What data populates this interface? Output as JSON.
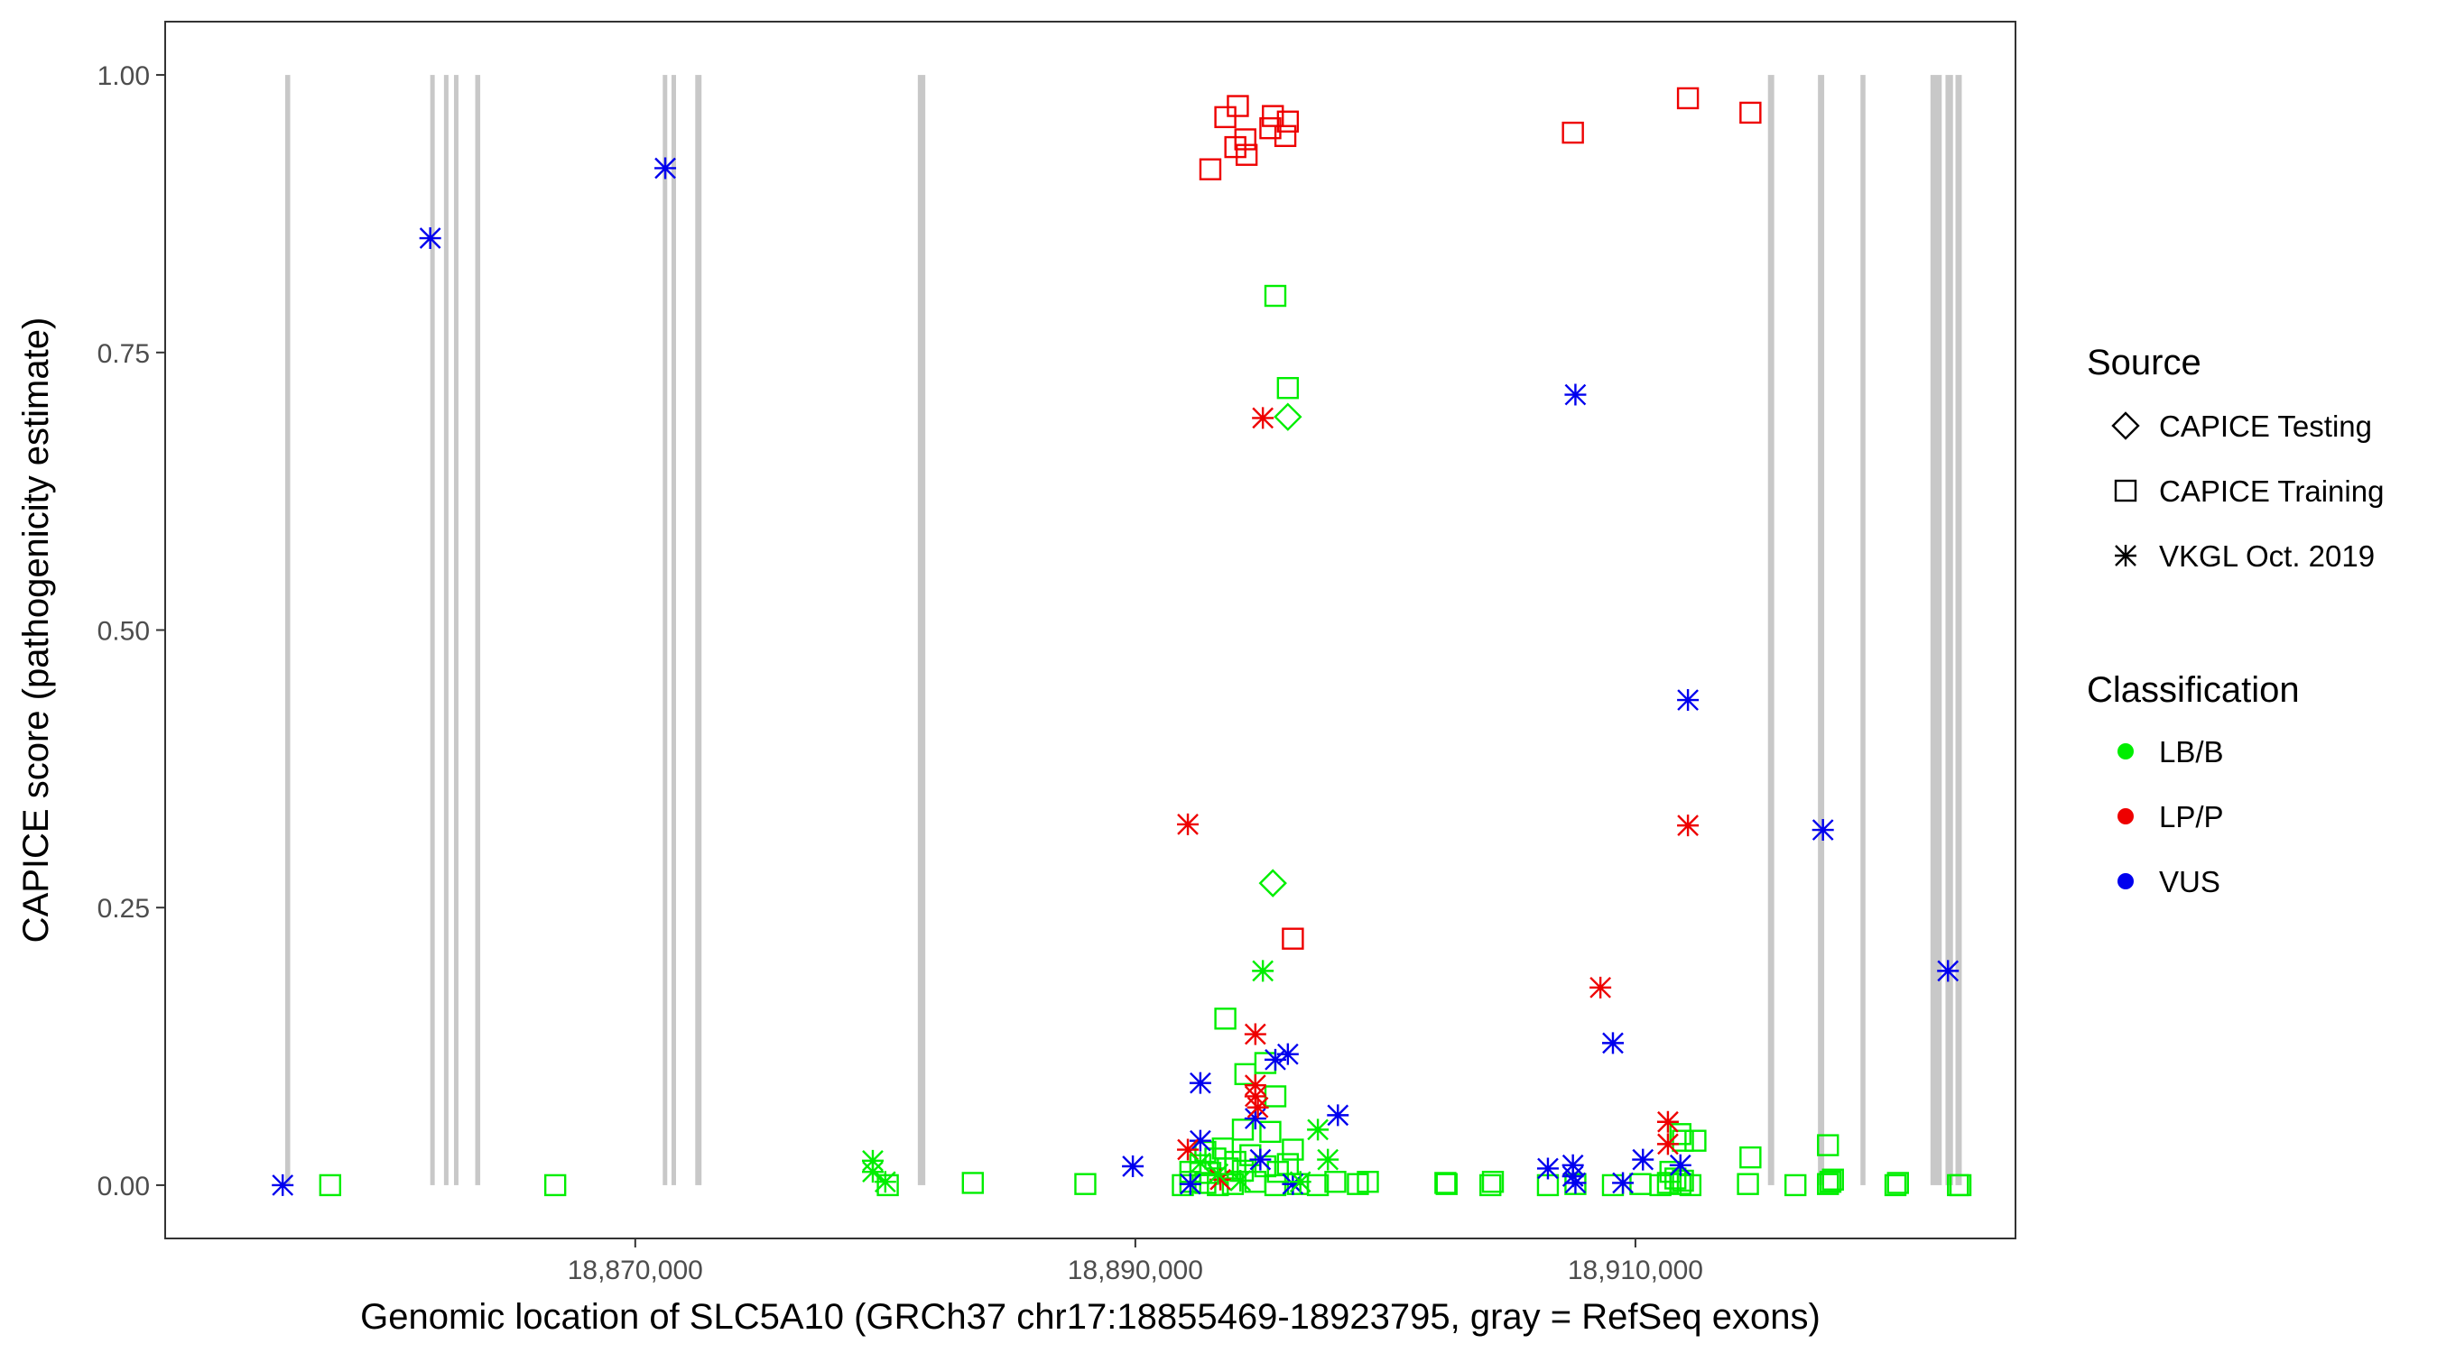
{
  "chart_data": {
    "type": "scatter",
    "xlabel": "Genomic location of SLC5A10 (GRCh37 chr17:18855469-18923795, gray = RefSeq exons)",
    "ylabel": "CAPICE score (pathogenicity estimate)",
    "xlim": [
      18851200,
      18925200
    ],
    "ylim": [
      -0.048,
      1.048
    ],
    "x_ticks": [
      18870000,
      18890000,
      18910000
    ],
    "x_tick_labels": [
      "18,870,000",
      "18,890,000",
      "18,910,000"
    ],
    "y_ticks": [
      0,
      0.25,
      0.5,
      0.75,
      1
    ],
    "y_tick_labels": [
      "0.00",
      "0.25",
      "0.50",
      "0.75",
      "1.00"
    ],
    "grid": false,
    "exon_color": "#c8c8c8",
    "exons": [
      [
        18856000,
        18856200
      ],
      [
        18861800,
        18861950
      ],
      [
        18862350,
        18862500
      ],
      [
        18862750,
        18862900
      ],
      [
        18863600,
        18863800
      ],
      [
        18871100,
        18871250
      ],
      [
        18871450,
        18871600
      ],
      [
        18872400,
        18872650
      ],
      [
        18881300,
        18881600
      ],
      [
        18915300,
        18915550
      ],
      [
        18917300,
        18917550
      ],
      [
        18919000,
        18919200
      ],
      [
        18921800,
        18922250
      ],
      [
        18922400,
        18922700
      ],
      [
        18922800,
        18923050
      ]
    ],
    "legend": {
      "position": "right",
      "source_title": "Source",
      "source_entries": [
        {
          "label": "CAPICE Testing",
          "shape": "diamond"
        },
        {
          "label": "CAPICE Training",
          "shape": "square"
        },
        {
          "label": "VKGL Oct. 2019",
          "shape": "asterisk"
        }
      ],
      "class_title": "Classification",
      "class_entries": [
        {
          "label": "LB/B",
          "color": "#00ee00"
        },
        {
          "label": "LP/P",
          "color": "#ee0000"
        },
        {
          "label": "VUS",
          "color": "#0000ee"
        }
      ]
    },
    "series": [
      {
        "source": "CAPICE Training",
        "classification": "LP/P",
        "shape": "square",
        "color": "#ee0000",
        "points": [
          [
            18893000,
            0.915
          ],
          [
            18893600,
            0.962
          ],
          [
            18894000,
            0.935
          ],
          [
            18894100,
            0.972
          ],
          [
            18894400,
            0.942
          ],
          [
            18894450,
            0.928
          ],
          [
            18895400,
            0.952
          ],
          [
            18895500,
            0.963
          ],
          [
            18896000,
            0.945
          ],
          [
            18896100,
            0.958
          ],
          [
            18907500,
            0.948
          ],
          [
            18912100,
            0.979
          ],
          [
            18914600,
            0.966
          ],
          [
            18896300,
            0.222
          ]
        ]
      },
      {
        "source": "CAPICE Training",
        "classification": "LB/B",
        "shape": "square",
        "color": "#00ee00",
        "points": [
          [
            18857800,
            0.0
          ],
          [
            18866800,
            0.0
          ],
          [
            18880100,
            0.0
          ],
          [
            18883500,
            0.002
          ],
          [
            18888000,
            0.001
          ],
          [
            18891900,
            0.0
          ],
          [
            18892200,
            0.003
          ],
          [
            18892800,
            0.002
          ],
          [
            18893300,
            0.0
          ],
          [
            18893900,
            0.001
          ],
          [
            18894800,
            0.003
          ],
          [
            18895600,
            0.0
          ],
          [
            18896500,
            0.001
          ],
          [
            18897300,
            0.0
          ],
          [
            18898000,
            0.003
          ],
          [
            18898900,
            0.001
          ],
          [
            18899300,
            0.003
          ],
          [
            18902400,
            0.002
          ],
          [
            18902450,
            0.001
          ],
          [
            18904200,
            0.0
          ],
          [
            18904300,
            0.003
          ],
          [
            18906500,
            0.0
          ],
          [
            18907600,
            0.001
          ],
          [
            18909100,
            0.0
          ],
          [
            18910200,
            0.001
          ],
          [
            18911000,
            0.0
          ],
          [
            18911300,
            0.002
          ],
          [
            18911800,
            0.001
          ],
          [
            18912200,
            0.0
          ],
          [
            18914500,
            0.001
          ],
          [
            18916400,
            0.0
          ],
          [
            18917700,
            0.001
          ],
          [
            18917800,
            0.003
          ],
          [
            18920400,
            0.0
          ],
          [
            18920500,
            0.002
          ],
          [
            18922900,
            0.0
          ],
          [
            18923000,
            0.0
          ],
          [
            18892200,
            0.012
          ],
          [
            18892600,
            0.018
          ],
          [
            18893000,
            0.011
          ],
          [
            18893200,
            0.024
          ],
          [
            18893700,
            0.015
          ],
          [
            18894000,
            0.021
          ],
          [
            18894300,
            0.013
          ],
          [
            18894600,
            0.027
          ],
          [
            18895200,
            0.017
          ],
          [
            18895700,
            0.012
          ],
          [
            18896100,
            0.019
          ],
          [
            18896300,
            0.032
          ],
          [
            18893500,
            0.033
          ],
          [
            18894300,
            0.05
          ],
          [
            18895400,
            0.048
          ],
          [
            18893600,
            0.15
          ],
          [
            18894400,
            0.1
          ],
          [
            18895600,
            0.08
          ],
          [
            18895200,
            0.11
          ],
          [
            18895600,
            0.801
          ],
          [
            18896100,
            0.718
          ],
          [
            18914600,
            0.025
          ],
          [
            18912400,
            0.04
          ],
          [
            18911800,
            0.046
          ],
          [
            18911900,
            0.04
          ],
          [
            18911400,
            0.012
          ],
          [
            18911600,
            0.006
          ],
          [
            18911900,
            0.004
          ],
          [
            18917700,
            0.036
          ],
          [
            18917900,
            0.005
          ],
          [
            18892800,
            0.03
          ]
        ]
      },
      {
        "source": "CAPICE Testing",
        "classification": "LB/B",
        "shape": "diamond",
        "color": "#00ee00",
        "points": [
          [
            18896100,
            0.692
          ],
          [
            18895500,
            0.272
          ]
        ]
      },
      {
        "source": "VKGL Oct. 2019",
        "classification": "VUS",
        "shape": "asterisk",
        "color": "#0000ee",
        "points": [
          [
            18855900,
            0.0
          ],
          [
            18861800,
            0.853
          ],
          [
            18871200,
            0.916
          ],
          [
            18889900,
            0.017
          ],
          [
            18892600,
            0.092
          ],
          [
            18892600,
            0.04
          ],
          [
            18892200,
            0.001
          ],
          [
            18894800,
            0.06
          ],
          [
            18895600,
            0.113
          ],
          [
            18896100,
            0.118
          ],
          [
            18895000,
            0.023
          ],
          [
            18898100,
            0.063
          ],
          [
            18896300,
            0.001
          ],
          [
            18907600,
            0.712
          ],
          [
            18909100,
            0.128
          ],
          [
            18906500,
            0.015
          ],
          [
            18907500,
            0.018
          ],
          [
            18907500,
            0.008
          ],
          [
            18907600,
            0.002
          ],
          [
            18909500,
            0.002
          ],
          [
            18910300,
            0.023
          ],
          [
            18912100,
            0.437
          ],
          [
            18911800,
            0.018
          ],
          [
            18917500,
            0.32
          ],
          [
            18922500,
            0.193
          ]
        ]
      },
      {
        "source": "VKGL Oct. 2019",
        "classification": "LP/P",
        "shape": "asterisk",
        "color": "#ee0000",
        "points": [
          [
            18892100,
            0.325
          ],
          [
            18895100,
            0.691
          ],
          [
            18894800,
            0.136
          ],
          [
            18894800,
            0.09
          ],
          [
            18894800,
            0.08
          ],
          [
            18894900,
            0.07
          ],
          [
            18892100,
            0.032
          ],
          [
            18893400,
            0.005
          ],
          [
            18908600,
            0.178
          ],
          [
            18911300,
            0.057
          ],
          [
            18911300,
            0.037
          ],
          [
            18912100,
            0.324
          ]
        ]
      },
      {
        "source": "VKGL Oct. 2019",
        "classification": "LB/B",
        "shape": "asterisk",
        "color": "#00ee00",
        "points": [
          [
            18879500,
            0.022
          ],
          [
            18879500,
            0.012
          ],
          [
            18880000,
            0.003
          ],
          [
            18895100,
            0.193
          ],
          [
            18897300,
            0.05
          ],
          [
            18897700,
            0.023
          ],
          [
            18892600,
            0.02
          ],
          [
            18893300,
            0.01
          ],
          [
            18894200,
            0.004
          ],
          [
            18896600,
            0.003
          ]
        ]
      }
    ]
  }
}
